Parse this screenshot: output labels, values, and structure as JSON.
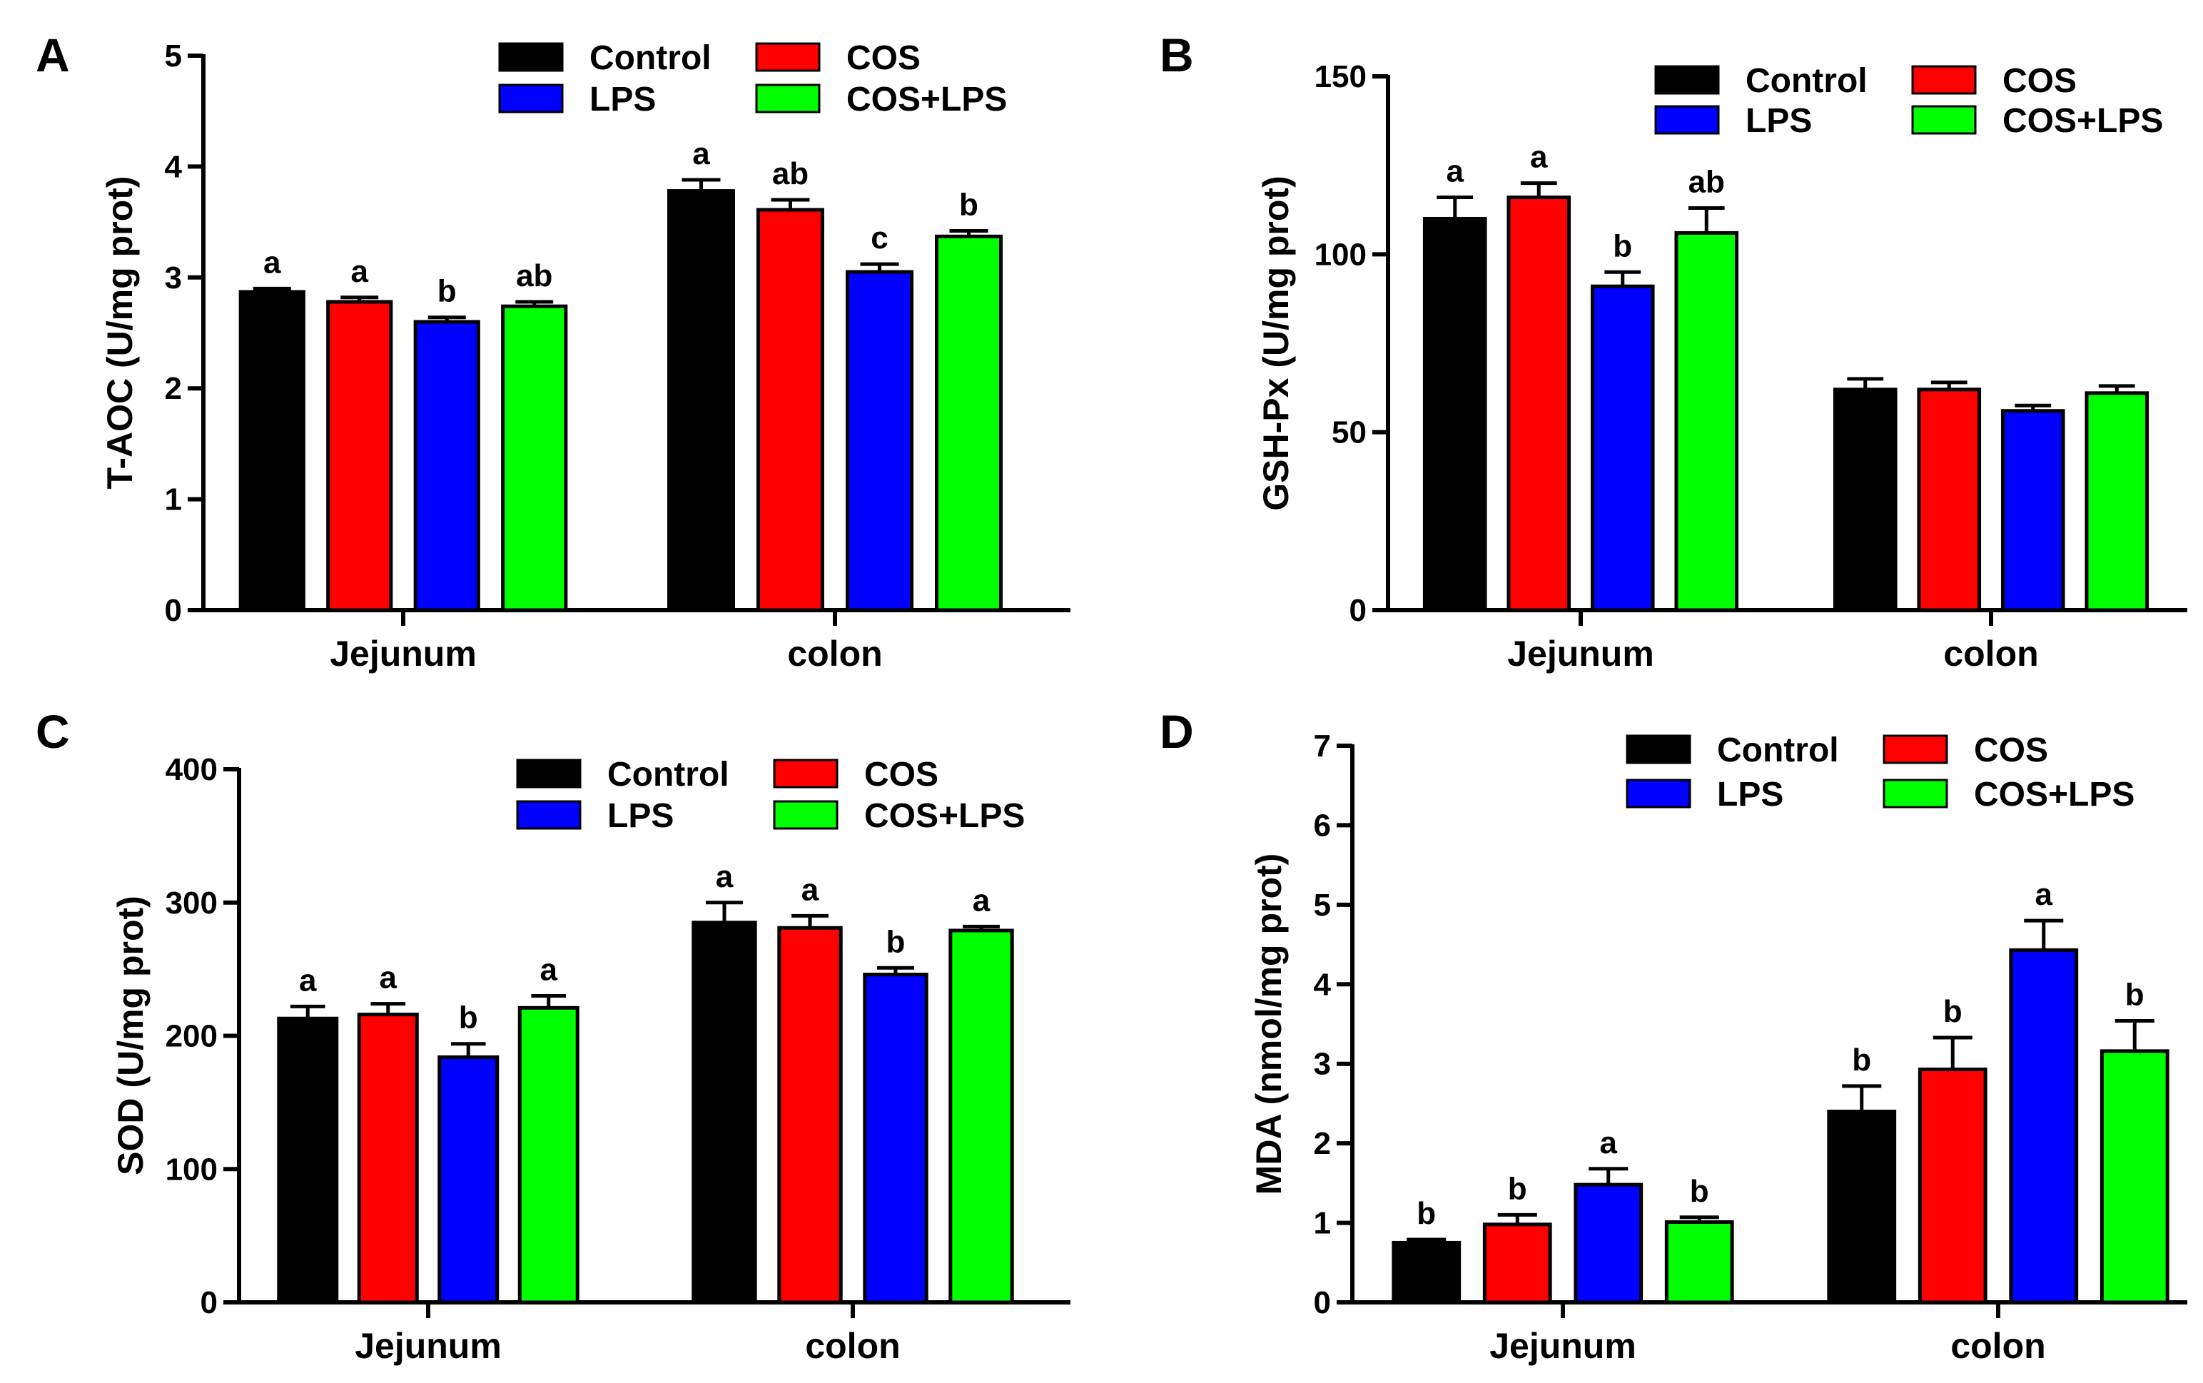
{
  "legend_entries": [
    "Control",
    "COS",
    "LPS",
    "COS+LPS"
  ],
  "series_colors": {
    "Control": "#000000",
    "COS": "#ff0000",
    "LPS": "#0000ff",
    "COS+LPS": "#00ff00"
  },
  "chart_data": [
    {
      "panel": "A",
      "type": "bar",
      "ylabel": "T-AOC (U/mg prot)",
      "ylim": [
        0,
        5
      ],
      "yticks": [
        0,
        1,
        2,
        3,
        4,
        5
      ],
      "categories": [
        "Jejunum",
        "colon"
      ],
      "legend_position": "top-right",
      "series": [
        {
          "name": "Control",
          "values": [
            2.87,
            3.78
          ],
          "errors": [
            0.03,
            0.1
          ],
          "labels": [
            "a",
            "a"
          ]
        },
        {
          "name": "COS",
          "values": [
            2.78,
            3.61
          ],
          "errors": [
            0.04,
            0.09
          ],
          "labels": [
            "a",
            "ab"
          ]
        },
        {
          "name": "LPS",
          "values": [
            2.6,
            3.05
          ],
          "errors": [
            0.04,
            0.07
          ],
          "labels": [
            "b",
            "c"
          ]
        },
        {
          "name": "COS+LPS",
          "values": [
            2.74,
            3.37
          ],
          "errors": [
            0.04,
            0.05
          ],
          "labels": [
            "ab",
            "b"
          ]
        }
      ]
    },
    {
      "panel": "B",
      "type": "bar",
      "ylabel": "GSH-Px (U/mg prot)",
      "ylim": [
        0,
        150
      ],
      "yticks": [
        0,
        50,
        100,
        150
      ],
      "categories": [
        "Jejunum",
        "colon"
      ],
      "legend_position": "top-right",
      "series": [
        {
          "name": "Control",
          "values": [
            110,
            62
          ],
          "errors": [
            6,
            3
          ],
          "labels": [
            "a",
            ""
          ]
        },
        {
          "name": "COS",
          "values": [
            116,
            62
          ],
          "errors": [
            4,
            2
          ],
          "labels": [
            "a",
            ""
          ]
        },
        {
          "name": "LPS",
          "values": [
            91,
            56
          ],
          "errors": [
            4,
            1.5
          ],
          "labels": [
            "b",
            ""
          ]
        },
        {
          "name": "COS+LPS",
          "values": [
            106,
            61
          ],
          "errors": [
            7,
            2
          ],
          "labels": [
            "ab",
            ""
          ]
        }
      ]
    },
    {
      "panel": "C",
      "type": "bar",
      "ylabel": "SOD (U/mg prot)",
      "ylim": [
        0,
        400
      ],
      "yticks": [
        0,
        100,
        200,
        300,
        400
      ],
      "categories": [
        "Jejunum",
        "colon"
      ],
      "legend_position": "top-right",
      "series": [
        {
          "name": "Control",
          "values": [
            213,
            285
          ],
          "errors": [
            9,
            15
          ],
          "labels": [
            "a",
            "a"
          ]
        },
        {
          "name": "COS",
          "values": [
            216,
            281
          ],
          "errors": [
            8,
            9
          ],
          "labels": [
            "a",
            "a"
          ]
        },
        {
          "name": "LPS",
          "values": [
            184,
            246
          ],
          "errors": [
            10,
            5
          ],
          "labels": [
            "b",
            "b"
          ]
        },
        {
          "name": "COS+LPS",
          "values": [
            221,
            279
          ],
          "errors": [
            9,
            3
          ],
          "labels": [
            "a",
            "a"
          ]
        }
      ]
    },
    {
      "panel": "D",
      "type": "bar",
      "ylabel": "MDA (nmol/mg prot)",
      "ylim": [
        0,
        7
      ],
      "yticks": [
        0,
        1,
        2,
        3,
        4,
        5,
        6,
        7
      ],
      "categories": [
        "Jejunum",
        "colon"
      ],
      "legend_position": "top-right",
      "series": [
        {
          "name": "Control",
          "values": [
            0.75,
            2.4
          ],
          "errors": [
            0.04,
            0.32
          ],
          "labels": [
            "b",
            "b"
          ]
        },
        {
          "name": "COS",
          "values": [
            0.98,
            2.93
          ],
          "errors": [
            0.12,
            0.4
          ],
          "labels": [
            "b",
            "b"
          ]
        },
        {
          "name": "LPS",
          "values": [
            1.48,
            4.43
          ],
          "errors": [
            0.2,
            0.37
          ],
          "labels": [
            "a",
            "a"
          ]
        },
        {
          "name": "COS+LPS",
          "values": [
            1.01,
            3.16
          ],
          "errors": [
            0.06,
            0.38
          ],
          "labels": [
            "b",
            "b"
          ]
        }
      ]
    }
  ]
}
